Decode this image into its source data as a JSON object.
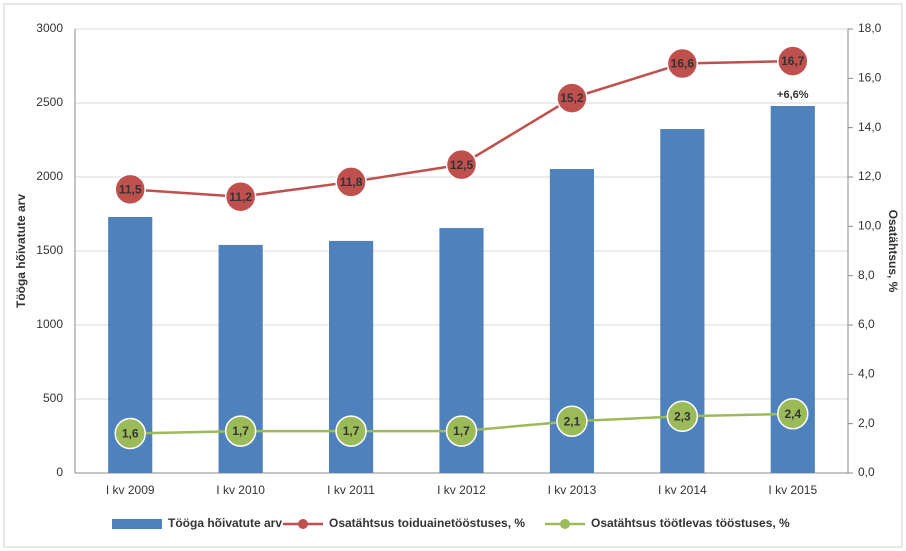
{
  "chart_data": {
    "type": "bar",
    "categories": [
      "I kv 2009",
      "I kv 2010",
      "I kv 2011",
      "I kv 2012",
      "I kv 2013",
      "I kv 2014",
      "I kv 2015"
    ],
    "series": [
      {
        "name": "Tööga hõivatute arv",
        "type": "bar",
        "color": "#4f81bd",
        "values": [
          1730,
          1541,
          1568,
          1655,
          2054,
          2324,
          2480
        ]
      },
      {
        "name": "Osatähtsus toiduainetööstuses, %",
        "type": "line",
        "axis": "y2",
        "color": "#c0504d",
        "values": [
          11.5,
          11.2,
          11.8,
          12.5,
          15.2,
          16.6,
          16.7
        ],
        "value_labels": [
          "11,5",
          "11,2",
          "11,8",
          "12,5",
          "15,2",
          "16,6",
          "16,7"
        ]
      },
      {
        "name": "Osatähtsus töötlevas tööstuses, %",
        "type": "line",
        "axis": "y2",
        "color": "#9bbb59",
        "values": [
          1.6,
          1.7,
          1.7,
          1.7,
          2.1,
          2.3,
          2.4
        ],
        "value_labels": [
          "1,6",
          "1,7",
          "1,7",
          "1,7",
          "2,1",
          "2,3",
          "2,4"
        ]
      }
    ],
    "annotations": [
      "+6,6%"
    ],
    "ylabel": "Tööga hõivatute arv",
    "y2label": "Osatähtsus, %",
    "ylim": [
      0,
      3000
    ],
    "yticks": [
      0,
      500,
      1000,
      1500,
      2000,
      2500,
      3000
    ],
    "y2lim": [
      0,
      18
    ],
    "y2ticks": [
      {
        "value": 0,
        "label": "0,0"
      },
      {
        "value": 2,
        "label": "2,0"
      },
      {
        "value": 4,
        "label": "4,0"
      },
      {
        "value": 6,
        "label": "6,0"
      },
      {
        "value": 8,
        "label": "8,0"
      },
      {
        "value": 10,
        "label": "10,0"
      },
      {
        "value": 12,
        "label": "12,0"
      },
      {
        "value": 14,
        "label": "14,0"
      },
      {
        "value": 16,
        "label": "16,0"
      },
      {
        "value": 18,
        "label": "18,0"
      }
    ],
    "grid": true,
    "legend": "bottom"
  }
}
